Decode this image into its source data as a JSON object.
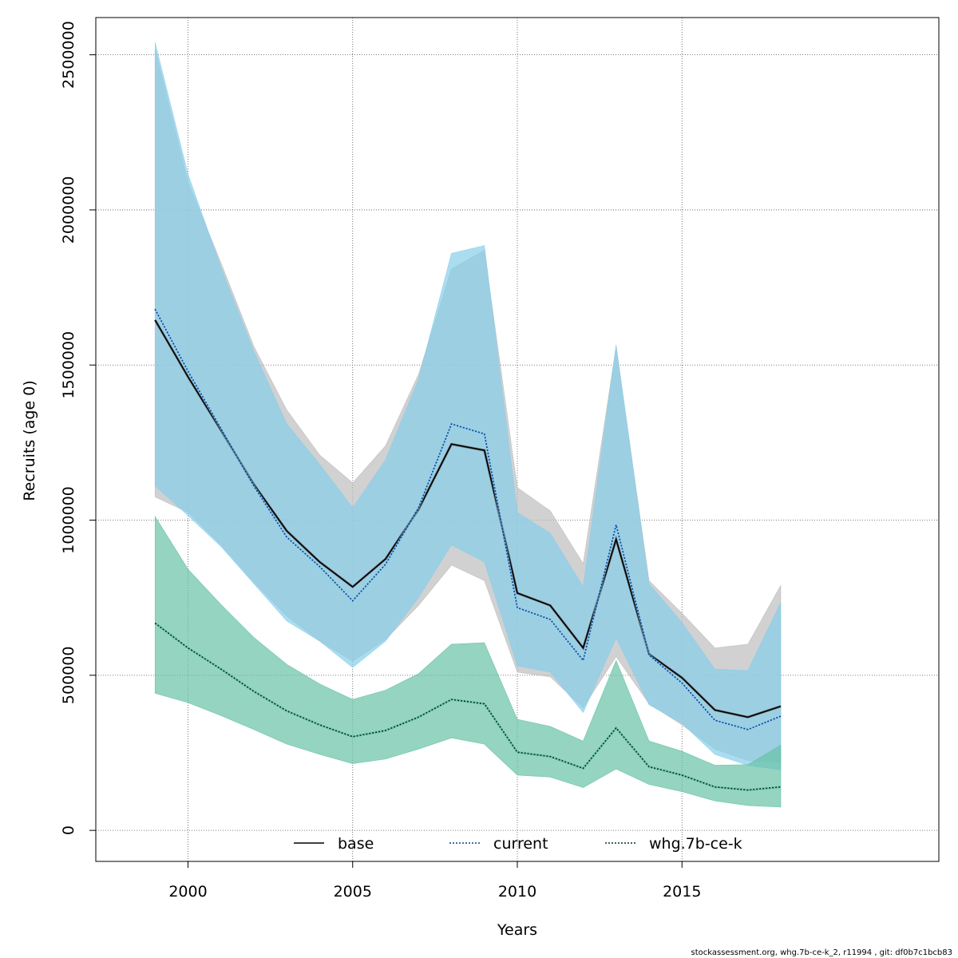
{
  "chart_data": {
    "type": "line",
    "xlabel": "Years",
    "ylabel": "Recruits (age 0)",
    "xlim": [
      1997.2,
      2022.8
    ],
    "ylim": [
      -100000,
      2620000
    ],
    "x_ticks": [
      2000,
      2005,
      2010,
      2015
    ],
    "x_tick_labels": [
      "2000",
      "2005",
      "2010",
      "2015"
    ],
    "y_ticks": [
      0,
      500000,
      1000000,
      1500000,
      2000000,
      2500000
    ],
    "y_tick_labels": [
      "0",
      "500000",
      "1000000",
      "1500000",
      "2000000",
      "2500000"
    ],
    "grid": true,
    "legend_placement": "bottom",
    "footer": "stockassessment.org, whg.7b-ce-k_2, r11994 , git: df0b7c1bcb83",
    "x": [
      1999,
      2000,
      2001,
      2002,
      2003,
      2004,
      2005,
      2006,
      2007,
      2008,
      2009,
      2010,
      2011,
      2012,
      2013,
      2014,
      2015,
      2016,
      2017,
      2018
    ],
    "series": [
      {
        "name": "base",
        "color": "#000000",
        "band_color": "#bebebe",
        "line_style": "solid",
        "values": [
          1645000,
          1462000,
          1290000,
          1115000,
          965000,
          865000,
          785000,
          875000,
          1035000,
          1245000,
          1225000,
          765000,
          725000,
          588000,
          938000,
          568000,
          492000,
          388000,
          365000,
          400000
        ],
        "lower": [
          1075000,
          1025000,
          920000,
          800000,
          690000,
          610000,
          545000,
          615000,
          725000,
          855000,
          805000,
          510000,
          495000,
          395000,
          560000,
          408000,
          340000,
          262000,
          225000,
          220000
        ],
        "upper": [
          2520000,
          2090000,
          1830000,
          1560000,
          1355000,
          1210000,
          1120000,
          1240000,
          1470000,
          1810000,
          1870000,
          1105000,
          1030000,
          860000,
          1560000,
          805000,
          700000,
          588000,
          600000,
          790000
        ]
      },
      {
        "name": "current",
        "color": "#0b3d91",
        "band_color": "#87ceeb",
        "line_style": "dotted",
        "values": [
          1680000,
          1480000,
          1295000,
          1110000,
          945000,
          850000,
          740000,
          858000,
          1040000,
          1310000,
          1278000,
          718000,
          680000,
          548000,
          985000,
          565000,
          475000,
          355000,
          325000,
          368000
        ],
        "lower": [
          1110000,
          1015000,
          915000,
          795000,
          675000,
          610000,
          525000,
          610000,
          750000,
          920000,
          865000,
          530000,
          510000,
          380000,
          620000,
          405000,
          345000,
          245000,
          210000,
          195000
        ],
        "upper": [
          2540000,
          2115000,
          1815000,
          1545000,
          1310000,
          1180000,
          1040000,
          1195000,
          1455000,
          1860000,
          1885000,
          1025000,
          958000,
          785000,
          1565000,
          795000,
          670000,
          520000,
          515000,
          735000
        ]
      },
      {
        "name": "whg.7b-ce-k",
        "color": "#00332c",
        "band_color": "#66c2a5",
        "line_style": "dotted",
        "values": [
          668000,
          588000,
          520000,
          448000,
          385000,
          340000,
          302000,
          322000,
          365000,
          422000,
          408000,
          252000,
          238000,
          200000,
          330000,
          205000,
          178000,
          140000,
          130000,
          140000
        ],
        "lower": [
          442000,
          412000,
          370000,
          325000,
          278000,
          245000,
          215000,
          230000,
          262000,
          298000,
          278000,
          178000,
          172000,
          138000,
          198000,
          148000,
          125000,
          95000,
          80000,
          75000
        ],
        "upper": [
          1012000,
          842000,
          728000,
          622000,
          535000,
          472000,
          422000,
          452000,
          505000,
          600000,
          605000,
          358000,
          335000,
          288000,
          548000,
          288000,
          255000,
          210000,
          212000,
          275000
        ]
      }
    ]
  }
}
